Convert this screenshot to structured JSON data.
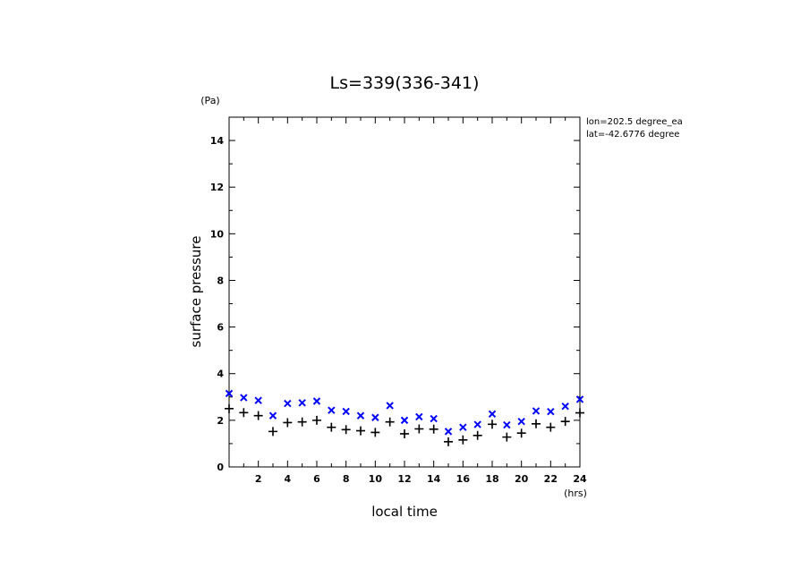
{
  "chart_data": {
    "type": "scatter",
    "title": "Ls=339(336-341)",
    "xlabel": "local time",
    "ylabel": "surface pressure",
    "x_unit": "(hrs)",
    "y_unit": "(Pa)",
    "xlim": [
      0,
      24
    ],
    "ylim": [
      0,
      15
    ],
    "x_major_ticks": [
      2,
      4,
      6,
      8,
      10,
      12,
      14,
      16,
      18,
      20,
      22,
      24
    ],
    "y_major_ticks": [
      0,
      2,
      4,
      6,
      8,
      10,
      12,
      14
    ],
    "info_lines": [
      "lon=202.5 degree_ea",
      "lat=-42.6776 degree"
    ],
    "colors": {
      "series_x": "#0000ff",
      "series_plus": "#000000",
      "axes": "#000000"
    },
    "series": [
      {
        "marker": "x",
        "x": [
          0,
          1,
          2,
          3,
          4,
          5,
          6,
          7,
          8,
          9,
          10,
          11,
          12,
          13,
          14,
          15,
          16,
          17,
          18,
          19,
          20,
          21,
          22,
          23,
          24
        ],
        "values": [
          3.15,
          2.97,
          2.85,
          2.2,
          2.72,
          2.75,
          2.82,
          2.43,
          2.38,
          2.2,
          2.12,
          2.63,
          2.0,
          2.15,
          2.07,
          1.52,
          1.7,
          1.82,
          2.27,
          1.8,
          1.95,
          2.4,
          2.37,
          2.6,
          2.9
        ]
      },
      {
        "marker": "plus",
        "x": [
          0,
          1,
          2,
          3,
          4,
          5,
          6,
          7,
          8,
          9,
          10,
          11,
          12,
          13,
          14,
          15,
          16,
          17,
          18,
          19,
          20,
          21,
          22,
          23,
          24
        ],
        "values": [
          2.5,
          2.33,
          2.2,
          1.52,
          1.9,
          1.93,
          2.0,
          1.7,
          1.6,
          1.55,
          1.48,
          1.93,
          1.42,
          1.63,
          1.62,
          1.08,
          1.16,
          1.35,
          1.83,
          1.28,
          1.45,
          1.85,
          1.7,
          1.95,
          2.32
        ]
      }
    ]
  }
}
